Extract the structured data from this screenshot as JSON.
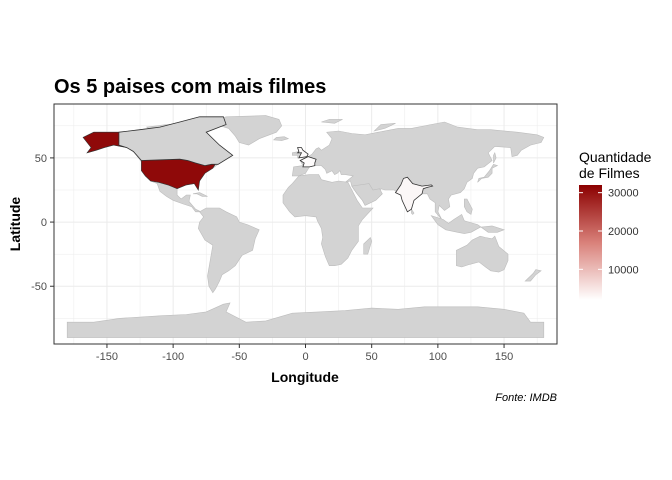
{
  "title": "Os 5 paises com mais filmes",
  "caption": "Fonte: IMDB",
  "colors": {
    "land": "#d3d3d3",
    "grid": "#ebebeb",
    "panel_border": "#333333",
    "scale_high": "#8b0000",
    "scale_low": "#ffffff"
  },
  "chart_data": {
    "type": "choropleth map",
    "xlabel": "Longitude",
    "ylabel": "Latitude",
    "xlim": [
      -190,
      190
    ],
    "ylim": [
      -95,
      92
    ],
    "xticks": [
      -150,
      -100,
      -50,
      0,
      50,
      100,
      150
    ],
    "yticks": [
      -50,
      0,
      50
    ],
    "tick_labels_x": [
      "-150",
      "-100",
      "-50",
      "0",
      "50",
      "100",
      "150"
    ],
    "tick_labels_y": [
      "-50",
      "0",
      "50"
    ],
    "grid": true,
    "legend": {
      "title_line1": "Quantidade",
      "title_line2": "de Filmes",
      "position": "right",
      "range": [
        2000,
        32000
      ],
      "breaks": [
        10000,
        20000,
        30000
      ],
      "break_labels": [
        "10000",
        "20000",
        "30000"
      ]
    },
    "countries": [
      {
        "name": "USA",
        "value": 31000
      },
      {
        "name": "India",
        "value": 3000
      },
      {
        "name": "UK",
        "value": 2500
      },
      {
        "name": "France",
        "value": 2300
      },
      {
        "name": "Canada",
        "value": 2200
      }
    ]
  }
}
